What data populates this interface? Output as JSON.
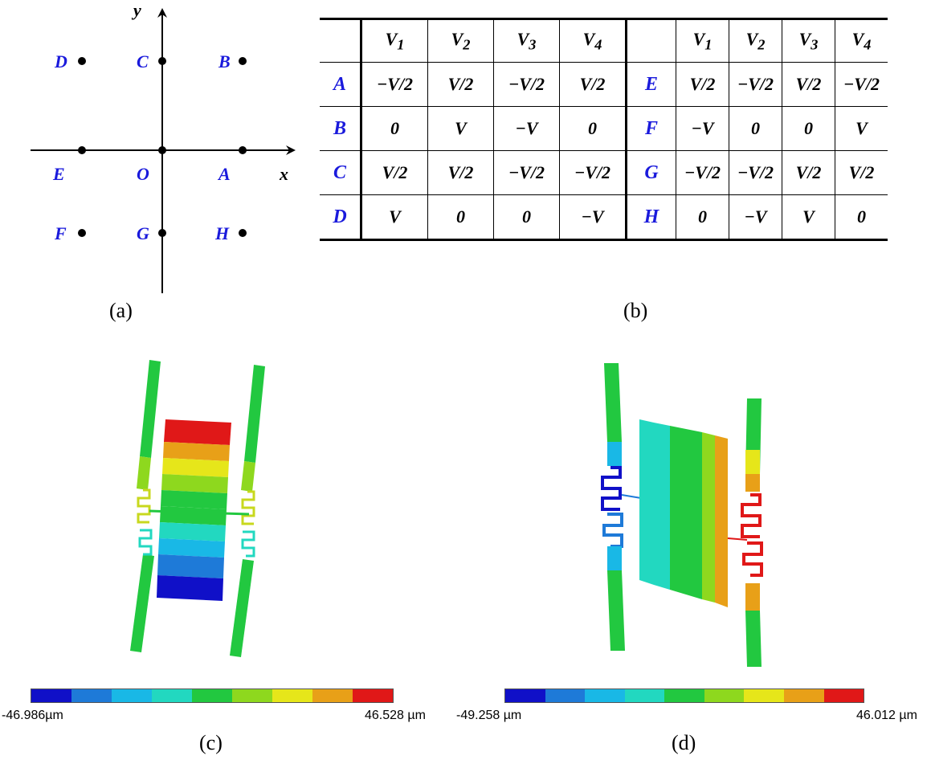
{
  "diagram": {
    "points": [
      {
        "id": "A",
        "label": "A"
      },
      {
        "id": "B",
        "label": "B"
      },
      {
        "id": "C",
        "label": "C"
      },
      {
        "id": "D",
        "label": "D"
      },
      {
        "id": "E",
        "label": "E"
      },
      {
        "id": "F",
        "label": "F"
      },
      {
        "id": "G",
        "label": "G"
      },
      {
        "id": "H",
        "label": "H"
      },
      {
        "id": "O",
        "label": "O"
      }
    ],
    "x_axis_label": "x",
    "y_axis_label": "y",
    "label_color": "#1a1adc"
  },
  "table": {
    "headers": [
      "V1",
      "V2",
      "V3",
      "V4"
    ],
    "header_base": "V",
    "header_subs": [
      "1",
      "2",
      "3",
      "4"
    ],
    "left_rows": [
      {
        "label": "A",
        "cells": [
          "−V/2",
          "V/2",
          "−V/2",
          "V/2"
        ]
      },
      {
        "label": "B",
        "cells": [
          "0",
          "V",
          "−V",
          "0"
        ]
      },
      {
        "label": "C",
        "cells": [
          "V/2",
          "V/2",
          "−V/2",
          "−V/2"
        ]
      },
      {
        "label": "D",
        "cells": [
          "V",
          "0",
          "0",
          "−V"
        ]
      }
    ],
    "right_rows": [
      {
        "label": "E",
        "cells": [
          "V/2",
          "−V/2",
          "V/2",
          "−V/2"
        ]
      },
      {
        "label": "F",
        "cells": [
          "−V",
          "0",
          "0",
          "V"
        ]
      },
      {
        "label": "G",
        "cells": [
          "−V/2",
          "−V/2",
          "V/2",
          "V/2"
        ]
      },
      {
        "label": "H",
        "cells": [
          "0",
          "−V",
          "V",
          "0"
        ]
      }
    ]
  },
  "fem_c": {
    "min_label": "-46.986µm",
    "max_label": "46.528 µm"
  },
  "fem_d": {
    "min_label": "-49.258 µm",
    "max_label": "46.012 µm"
  },
  "colormap": [
    "#1010c8",
    "#1e7ad8",
    "#19b8e6",
    "#22d8c0",
    "#22c840",
    "#8ed81e",
    "#e6e61a",
    "#e8a018",
    "#e01818"
  ],
  "captions": {
    "a": "(a)",
    "b": "(b)",
    "c": "(c)",
    "d": "(d)"
  }
}
